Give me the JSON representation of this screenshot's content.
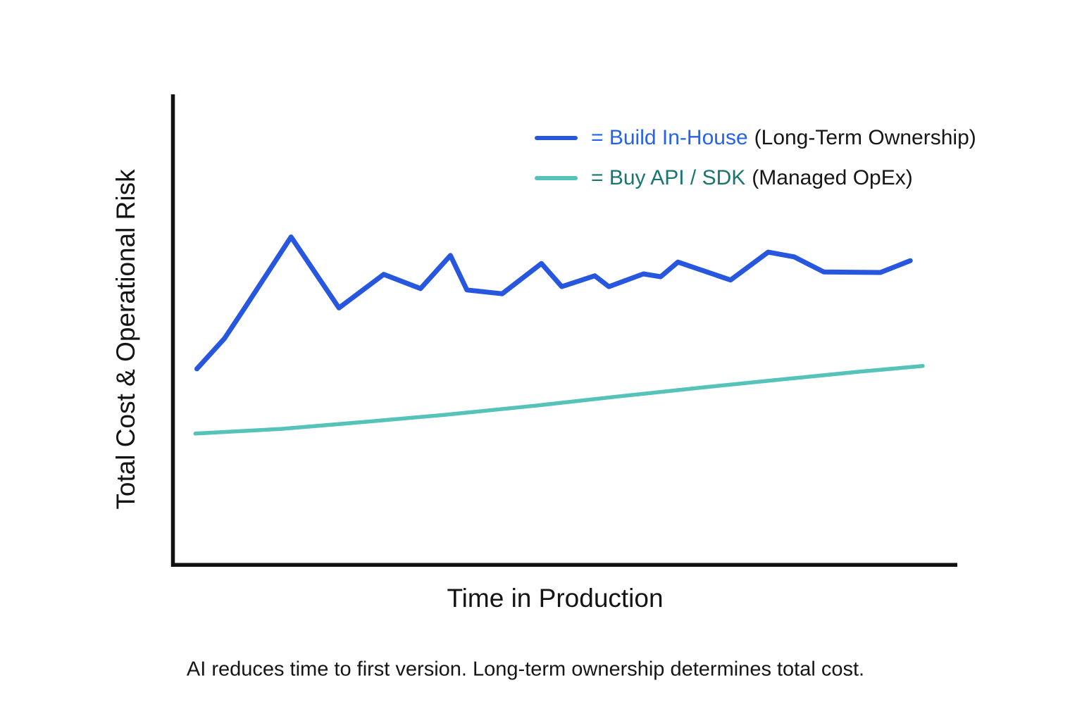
{
  "page": {
    "background": "#ffffff",
    "text_color": "#161616"
  },
  "legend": {
    "items": [
      {
        "label": "= Build In-House",
        "qualifier": "(Long-Term Ownership)",
        "label_color": "#2563eb"
      },
      {
        "label": "= Buy API / SDK",
        "qualifier": "(Managed OpEx)",
        "label_color": "#1b756f"
      }
    ]
  },
  "caption": "AI reduces time to first version. Long-term ownership determines total cost.",
  "chart_data": {
    "type": "line",
    "title": "",
    "xlabel": "Time in Production",
    "ylabel": "Total Cost & Operational Risk",
    "axis_color": "#111111",
    "grid": false,
    "legend_position": "top-right",
    "x_axis": {
      "range": [
        0,
        100
      ],
      "ticks": "none",
      "unit": "conceptual time"
    },
    "y_axis": {
      "range": [
        0,
        100
      ],
      "ticks": "none",
      "unit": "conceptual cost/risk"
    },
    "series": [
      {
        "name": "Build In-House",
        "qualifier": "(Long-Term Ownership)",
        "color": "#2857df",
        "stroke_width": 7,
        "shape": "jagged",
        "points": [
          [
            3.1,
            41.9
          ],
          [
            6.6,
            48.3
          ],
          [
            9.0,
            54.3
          ],
          [
            15.1,
            69.8
          ],
          [
            21.2,
            54.8
          ],
          [
            26.9,
            61.9
          ],
          [
            31.6,
            58.9
          ],
          [
            35.4,
            65.9
          ],
          [
            37.5,
            58.6
          ],
          [
            42.0,
            57.8
          ],
          [
            47.0,
            64.2
          ],
          [
            49.6,
            59.3
          ],
          [
            53.8,
            61.6
          ],
          [
            55.6,
            59.3
          ],
          [
            60.0,
            62.0
          ],
          [
            62.2,
            61.4
          ],
          [
            64.4,
            64.5
          ],
          [
            71.1,
            60.7
          ],
          [
            75.9,
            66.6
          ],
          [
            79.2,
            65.6
          ],
          [
            83.0,
            62.4
          ],
          [
            90.2,
            62.3
          ],
          [
            94.0,
            64.8
          ]
        ]
      },
      {
        "name": "Buy API / SDK",
        "qualifier": "(Managed OpEx)",
        "color": "#55c3ba",
        "stroke_width": 5.5,
        "shape": "smooth",
        "points": [
          [
            2.9,
            28.2
          ],
          [
            13.9,
            29.2
          ],
          [
            24.7,
            30.7
          ],
          [
            35.5,
            32.3
          ],
          [
            46.2,
            34.1
          ],
          [
            57.0,
            36.1
          ],
          [
            67.8,
            38.0
          ],
          [
            78.5,
            39.8
          ],
          [
            87.5,
            41.3
          ],
          [
            95.6,
            42.5
          ]
        ]
      }
    ]
  }
}
